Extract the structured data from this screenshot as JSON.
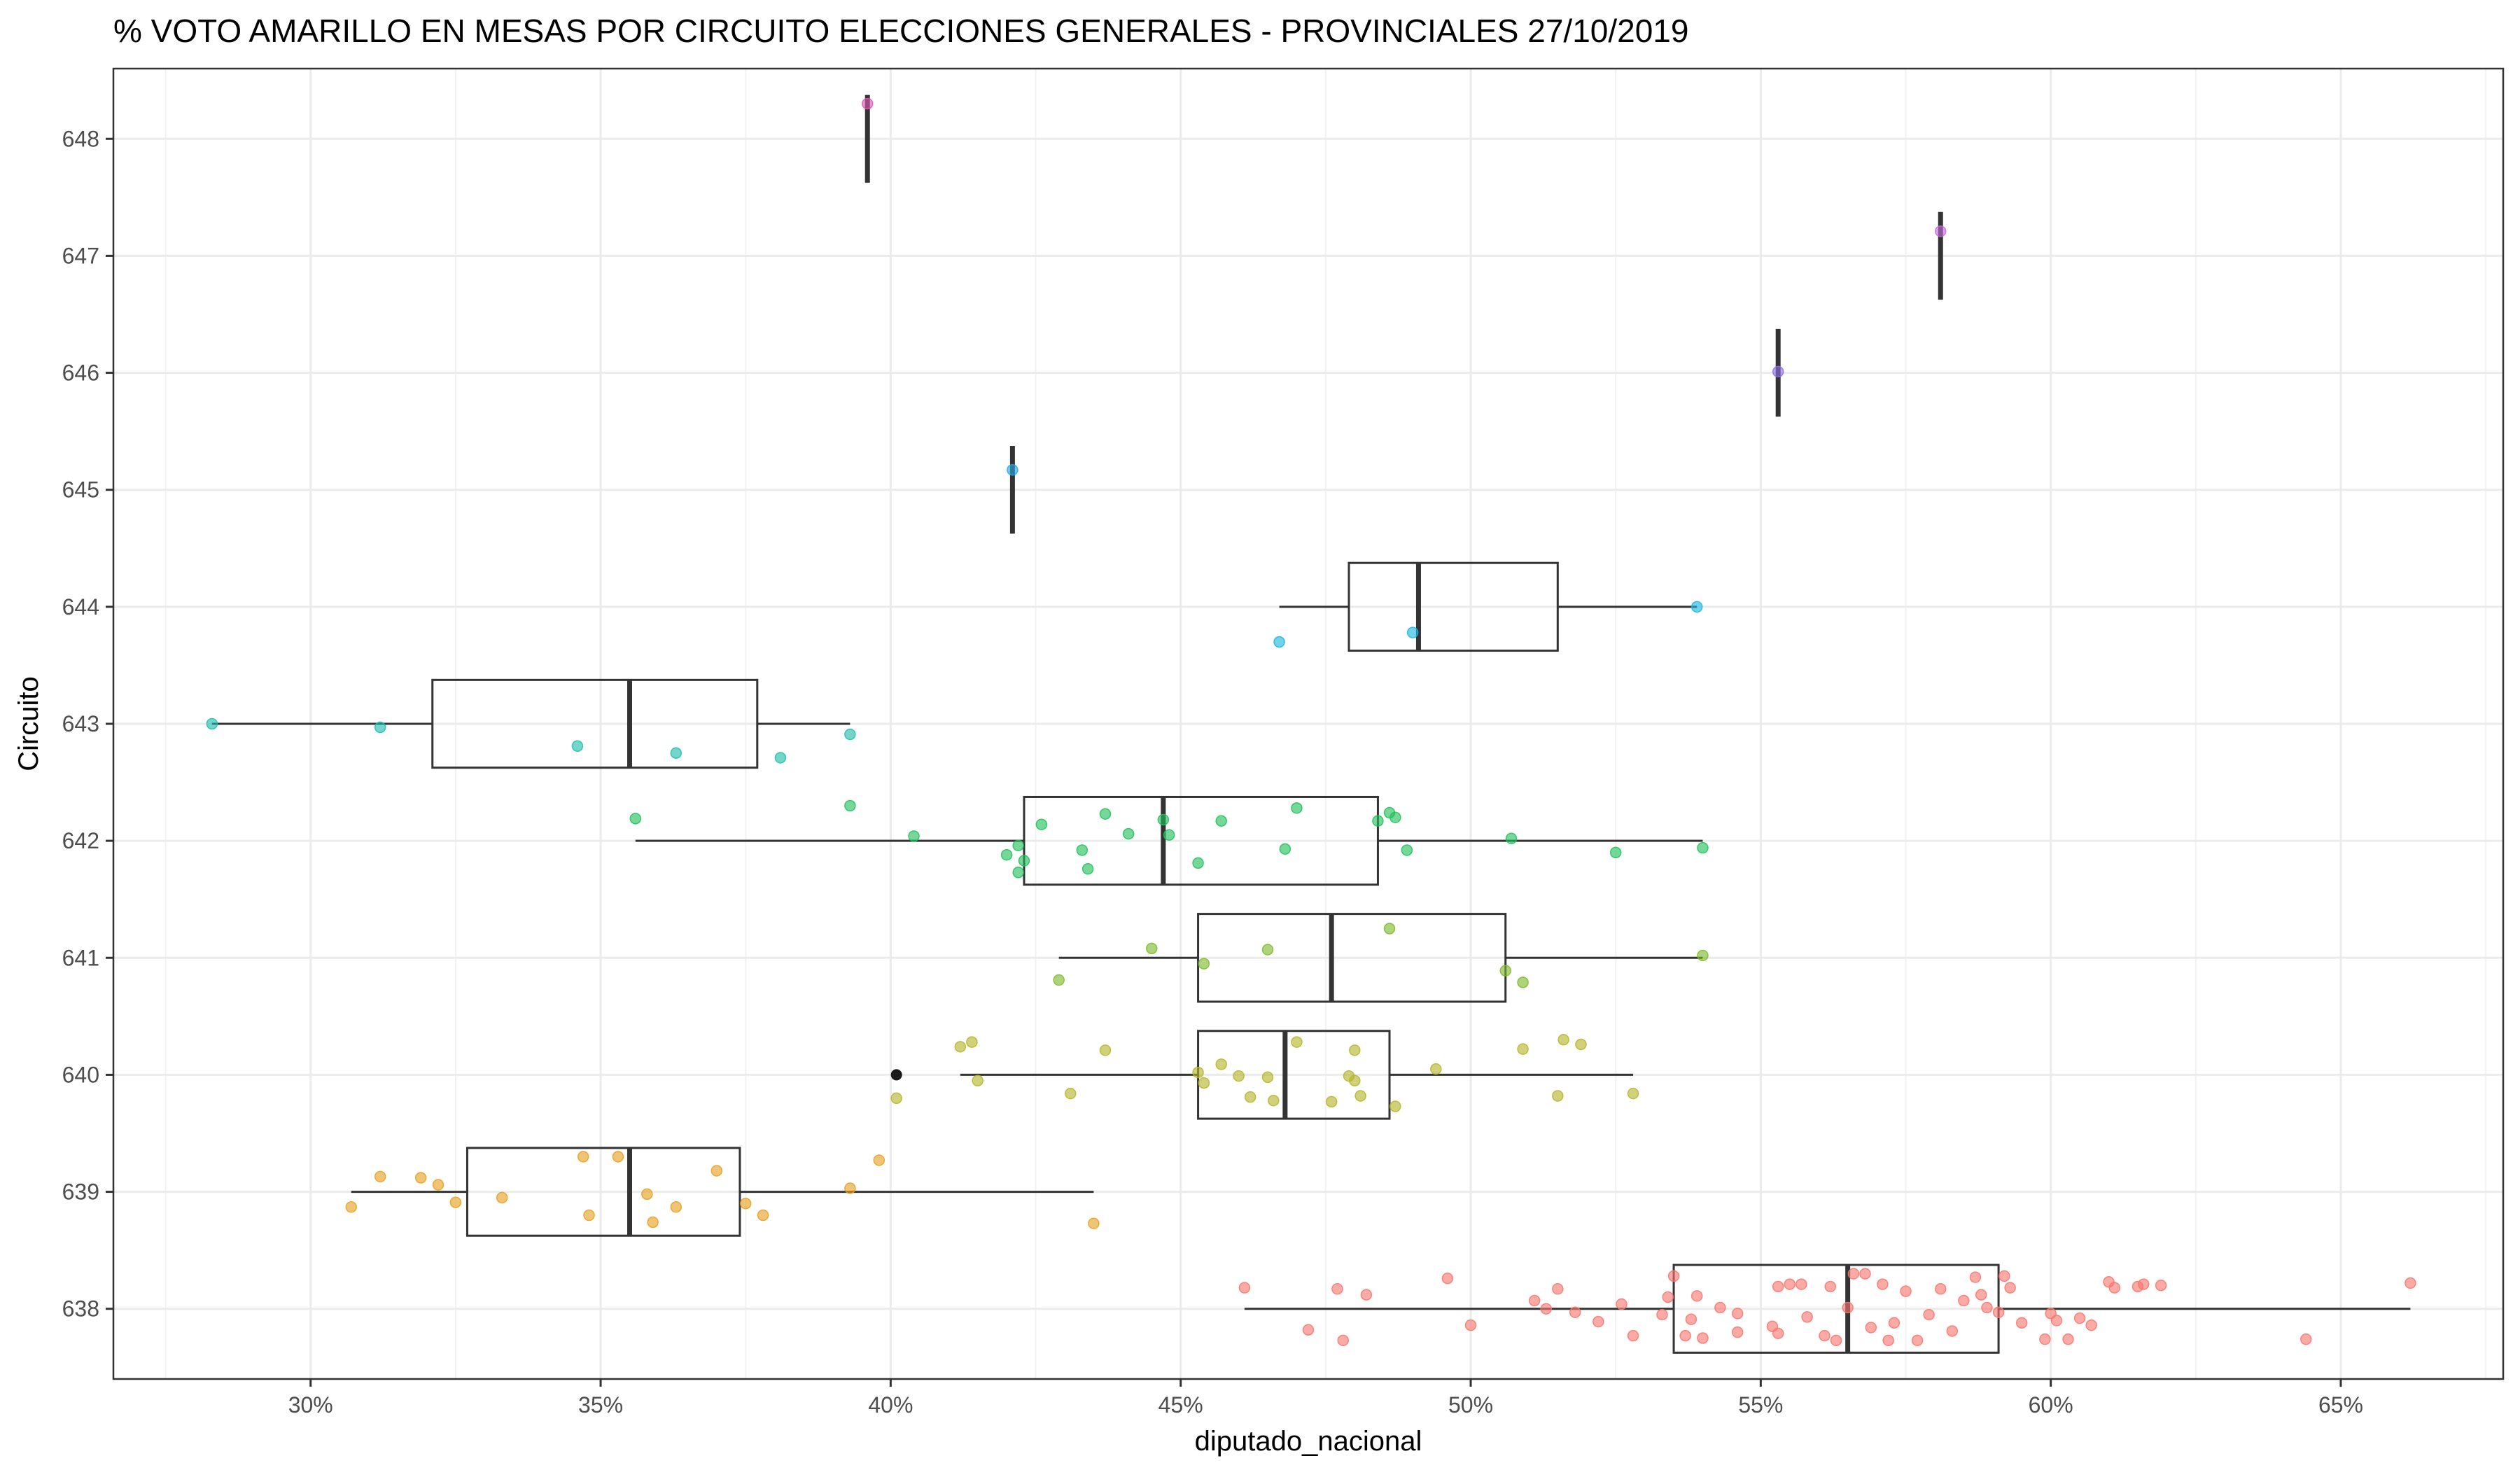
{
  "chart_data": {
    "type": "boxplot",
    "title": "% VOTO AMARILLO EN MESAS POR CIRCUITO  ELECCIONES GENERALES - PROVINCIALES 27/10/2019",
    "xlabel": "diputado_nacional",
    "ylabel": "Circuito",
    "x_unit": "%",
    "xlim": [
      26.6,
      67.8
    ],
    "x_ticks": [
      30,
      35,
      40,
      45,
      50,
      55,
      60,
      65
    ],
    "x_tick_labels": [
      "30%",
      "35%",
      "40%",
      "45%",
      "50%",
      "55%",
      "60%",
      "65%"
    ],
    "categories": [
      "638",
      "639",
      "640",
      "641",
      "642",
      "643",
      "644",
      "645",
      "646",
      "647",
      "648"
    ],
    "grid": true,
    "legend": "none",
    "colors": {
      "638": "#f8766d",
      "639": "#e69f20",
      "640": "#b5b52a",
      "641": "#7cba2a",
      "642": "#20c05a",
      "643": "#1fbdab",
      "644": "#1ab6e0",
      "645": "#27a9e6",
      "646": "#8e6fe8",
      "647": "#c66ae0",
      "648": "#e056b4"
    },
    "boxes": [
      {
        "circuit": "638",
        "whisker_low": 46.1,
        "q1": 53.5,
        "median": 56.5,
        "q3": 59.1,
        "whisker_high": 66.2
      },
      {
        "circuit": "639",
        "whisker_low": 30.7,
        "q1": 32.7,
        "median": 35.5,
        "q3": 37.4,
        "whisker_high": 43.5
      },
      {
        "circuit": "640",
        "whisker_low": 41.2,
        "q1": 45.3,
        "median": 46.8,
        "q3": 48.6,
        "whisker_high": 52.8
      },
      {
        "circuit": "641",
        "whisker_low": 42.9,
        "q1": 45.3,
        "median": 47.6,
        "q3": 50.6,
        "whisker_high": 54.0
      },
      {
        "circuit": "642",
        "whisker_low": 35.6,
        "q1": 42.3,
        "median": 44.7,
        "q3": 48.4,
        "whisker_high": 54.0
      },
      {
        "circuit": "643",
        "whisker_low": 28.3,
        "q1": 32.1,
        "median": 35.5,
        "q3": 37.7,
        "whisker_high": 39.3
      },
      {
        "circuit": "644",
        "whisker_low": 46.7,
        "q1": 47.9,
        "median": 49.1,
        "q3": 51.5,
        "whisker_high": 53.9
      },
      {
        "circuit": "645",
        "whisker_low": 42.1,
        "q1": 42.1,
        "median": 42.1,
        "q3": 42.1,
        "whisker_high": 42.1
      },
      {
        "circuit": "646",
        "whisker_low": 55.3,
        "q1": 55.3,
        "median": 55.3,
        "q3": 55.3,
        "whisker_high": 55.3
      },
      {
        "circuit": "647",
        "whisker_low": 58.1,
        "q1": 58.1,
        "median": 58.1,
        "q3": 58.1,
        "whisker_high": 58.1
      },
      {
        "circuit": "648",
        "whisker_low": 39.6,
        "q1": 39.6,
        "median": 39.6,
        "q3": 39.6,
        "whisker_high": 39.6
      }
    ],
    "outliers": [
      {
        "circuit": "640",
        "x": 40.1
      }
    ],
    "points": [
      {
        "circuit": "638",
        "x": 46.1,
        "y": 638.18
      },
      {
        "circuit": "638",
        "x": 47.2,
        "y": 637.82
      },
      {
        "circuit": "638",
        "x": 47.7,
        "y": 638.17
      },
      {
        "circuit": "638",
        "x": 47.8,
        "y": 637.73
      },
      {
        "circuit": "638",
        "x": 48.2,
        "y": 638.12
      },
      {
        "circuit": "638",
        "x": 49.6,
        "y": 638.26
      },
      {
        "circuit": "638",
        "x": 50.0,
        "y": 637.86
      },
      {
        "circuit": "638",
        "x": 51.1,
        "y": 638.07
      },
      {
        "circuit": "638",
        "x": 51.3,
        "y": 638.0
      },
      {
        "circuit": "638",
        "x": 51.5,
        "y": 638.17
      },
      {
        "circuit": "638",
        "x": 51.8,
        "y": 637.97
      },
      {
        "circuit": "638",
        "x": 52.2,
        "y": 637.89
      },
      {
        "circuit": "638",
        "x": 52.6,
        "y": 638.04
      },
      {
        "circuit": "638",
        "x": 52.8,
        "y": 637.77
      },
      {
        "circuit": "638",
        "x": 53.3,
        "y": 637.95
      },
      {
        "circuit": "638",
        "x": 53.4,
        "y": 638.1
      },
      {
        "circuit": "638",
        "x": 53.5,
        "y": 638.28
      },
      {
        "circuit": "638",
        "x": 53.7,
        "y": 637.77
      },
      {
        "circuit": "638",
        "x": 53.8,
        "y": 637.91
      },
      {
        "circuit": "638",
        "x": 53.9,
        "y": 638.11
      },
      {
        "circuit": "638",
        "x": 54.0,
        "y": 637.75
      },
      {
        "circuit": "638",
        "x": 54.3,
        "y": 638.01
      },
      {
        "circuit": "638",
        "x": 54.6,
        "y": 637.8
      },
      {
        "circuit": "638",
        "x": 54.6,
        "y": 637.96
      },
      {
        "circuit": "638",
        "x": 55.2,
        "y": 637.85
      },
      {
        "circuit": "638",
        "x": 55.3,
        "y": 638.19
      },
      {
        "circuit": "638",
        "x": 55.3,
        "y": 637.79
      },
      {
        "circuit": "638",
        "x": 55.5,
        "y": 638.21
      },
      {
        "circuit": "638",
        "x": 55.7,
        "y": 638.21
      },
      {
        "circuit": "638",
        "x": 55.8,
        "y": 637.93
      },
      {
        "circuit": "638",
        "x": 56.1,
        "y": 637.77
      },
      {
        "circuit": "638",
        "x": 56.2,
        "y": 638.19
      },
      {
        "circuit": "638",
        "x": 56.3,
        "y": 637.73
      },
      {
        "circuit": "638",
        "x": 56.5,
        "y": 638.01
      },
      {
        "circuit": "638",
        "x": 56.6,
        "y": 638.3
      },
      {
        "circuit": "638",
        "x": 56.8,
        "y": 638.3
      },
      {
        "circuit": "638",
        "x": 56.9,
        "y": 637.84
      },
      {
        "circuit": "638",
        "x": 57.1,
        "y": 638.21
      },
      {
        "circuit": "638",
        "x": 57.2,
        "y": 637.73
      },
      {
        "circuit": "638",
        "x": 57.3,
        "y": 637.88
      },
      {
        "circuit": "638",
        "x": 57.5,
        "y": 638.15
      },
      {
        "circuit": "638",
        "x": 57.7,
        "y": 637.73
      },
      {
        "circuit": "638",
        "x": 57.9,
        "y": 637.95
      },
      {
        "circuit": "638",
        "x": 58.1,
        "y": 638.17
      },
      {
        "circuit": "638",
        "x": 58.3,
        "y": 637.81
      },
      {
        "circuit": "638",
        "x": 58.5,
        "y": 638.07
      },
      {
        "circuit": "638",
        "x": 58.7,
        "y": 638.27
      },
      {
        "circuit": "638",
        "x": 58.8,
        "y": 638.12
      },
      {
        "circuit": "638",
        "x": 58.9,
        "y": 638.01
      },
      {
        "circuit": "638",
        "x": 59.1,
        "y": 637.97
      },
      {
        "circuit": "638",
        "x": 59.2,
        "y": 638.28
      },
      {
        "circuit": "638",
        "x": 59.3,
        "y": 638.18
      },
      {
        "circuit": "638",
        "x": 59.5,
        "y": 637.88
      },
      {
        "circuit": "638",
        "x": 59.9,
        "y": 637.74
      },
      {
        "circuit": "638",
        "x": 60.0,
        "y": 637.96
      },
      {
        "circuit": "638",
        "x": 60.1,
        "y": 637.9
      },
      {
        "circuit": "638",
        "x": 60.3,
        "y": 637.74
      },
      {
        "circuit": "638",
        "x": 60.5,
        "y": 637.92
      },
      {
        "circuit": "638",
        "x": 60.7,
        "y": 637.86
      },
      {
        "circuit": "638",
        "x": 61.0,
        "y": 638.23
      },
      {
        "circuit": "638",
        "x": 61.1,
        "y": 638.18
      },
      {
        "circuit": "638",
        "x": 61.5,
        "y": 638.19
      },
      {
        "circuit": "638",
        "x": 61.6,
        "y": 638.21
      },
      {
        "circuit": "638",
        "x": 61.9,
        "y": 638.2
      },
      {
        "circuit": "638",
        "x": 64.4,
        "y": 637.74
      },
      {
        "circuit": "638",
        "x": 66.2,
        "y": 638.22
      },
      {
        "circuit": "639",
        "x": 30.7,
        "y": 638.87
      },
      {
        "circuit": "639",
        "x": 31.2,
        "y": 639.13
      },
      {
        "circuit": "639",
        "x": 31.9,
        "y": 639.12
      },
      {
        "circuit": "639",
        "x": 32.2,
        "y": 639.06
      },
      {
        "circuit": "639",
        "x": 32.5,
        "y": 638.91
      },
      {
        "circuit": "639",
        "x": 33.3,
        "y": 638.95
      },
      {
        "circuit": "639",
        "x": 34.7,
        "y": 639.3
      },
      {
        "circuit": "639",
        "x": 34.8,
        "y": 638.8
      },
      {
        "circuit": "639",
        "x": 35.3,
        "y": 639.3
      },
      {
        "circuit": "639",
        "x": 35.8,
        "y": 638.98
      },
      {
        "circuit": "639",
        "x": 35.9,
        "y": 638.74
      },
      {
        "circuit": "639",
        "x": 36.3,
        "y": 638.87
      },
      {
        "circuit": "639",
        "x": 37.0,
        "y": 639.18
      },
      {
        "circuit": "639",
        "x": 37.5,
        "y": 638.9
      },
      {
        "circuit": "639",
        "x": 37.8,
        "y": 638.8
      },
      {
        "circuit": "639",
        "x": 39.3,
        "y": 639.03
      },
      {
        "circuit": "639",
        "x": 39.8,
        "y": 639.27
      },
      {
        "circuit": "639",
        "x": 43.5,
        "y": 638.73
      },
      {
        "circuit": "640",
        "x": 40.1,
        "y": 639.8
      },
      {
        "circuit": "640",
        "x": 41.2,
        "y": 640.24
      },
      {
        "circuit": "640",
        "x": 41.4,
        "y": 640.28
      },
      {
        "circuit": "640",
        "x": 41.5,
        "y": 639.95
      },
      {
        "circuit": "640",
        "x": 43.1,
        "y": 639.84
      },
      {
        "circuit": "640",
        "x": 43.7,
        "y": 640.21
      },
      {
        "circuit": "640",
        "x": 45.3,
        "y": 640.02
      },
      {
        "circuit": "640",
        "x": 45.4,
        "y": 639.93
      },
      {
        "circuit": "640",
        "x": 45.7,
        "y": 640.09
      },
      {
        "circuit": "640",
        "x": 46.0,
        "y": 639.99
      },
      {
        "circuit": "640",
        "x": 46.2,
        "y": 639.81
      },
      {
        "circuit": "640",
        "x": 46.5,
        "y": 639.98
      },
      {
        "circuit": "640",
        "x": 46.6,
        "y": 639.78
      },
      {
        "circuit": "640",
        "x": 47.0,
        "y": 640.28
      },
      {
        "circuit": "640",
        "x": 47.6,
        "y": 639.77
      },
      {
        "circuit": "640",
        "x": 47.9,
        "y": 639.99
      },
      {
        "circuit": "640",
        "x": 48.0,
        "y": 640.21
      },
      {
        "circuit": "640",
        "x": 48.1,
        "y": 639.82
      },
      {
        "circuit": "640",
        "x": 48.0,
        "y": 639.95
      },
      {
        "circuit": "640",
        "x": 48.7,
        "y": 639.73
      },
      {
        "circuit": "640",
        "x": 49.4,
        "y": 640.05
      },
      {
        "circuit": "640",
        "x": 50.9,
        "y": 640.22
      },
      {
        "circuit": "640",
        "x": 51.5,
        "y": 639.82
      },
      {
        "circuit": "640",
        "x": 51.6,
        "y": 640.3
      },
      {
        "circuit": "640",
        "x": 51.9,
        "y": 640.26
      },
      {
        "circuit": "640",
        "x": 52.8,
        "y": 639.84
      },
      {
        "circuit": "641",
        "x": 42.9,
        "y": 640.81
      },
      {
        "circuit": "641",
        "x": 44.5,
        "y": 641.08
      },
      {
        "circuit": "641",
        "x": 45.4,
        "y": 640.95
      },
      {
        "circuit": "641",
        "x": 46.5,
        "y": 641.07
      },
      {
        "circuit": "641",
        "x": 48.6,
        "y": 641.25
      },
      {
        "circuit": "641",
        "x": 50.6,
        "y": 640.89
      },
      {
        "circuit": "641",
        "x": 50.9,
        "y": 640.79
      },
      {
        "circuit": "641",
        "x": 54.0,
        "y": 641.02
      },
      {
        "circuit": "642",
        "x": 35.6,
        "y": 642.19
      },
      {
        "circuit": "642",
        "x": 39.3,
        "y": 642.3
      },
      {
        "circuit": "642",
        "x": 40.4,
        "y": 642.04
      },
      {
        "circuit": "642",
        "x": 42.0,
        "y": 641.88
      },
      {
        "circuit": "642",
        "x": 42.2,
        "y": 641.96
      },
      {
        "circuit": "642",
        "x": 42.3,
        "y": 641.83
      },
      {
        "circuit": "642",
        "x": 42.2,
        "y": 641.73
      },
      {
        "circuit": "642",
        "x": 42.6,
        "y": 642.14
      },
      {
        "circuit": "642",
        "x": 43.3,
        "y": 641.92
      },
      {
        "circuit": "642",
        "x": 43.4,
        "y": 641.76
      },
      {
        "circuit": "642",
        "x": 43.7,
        "y": 642.23
      },
      {
        "circuit": "642",
        "x": 44.1,
        "y": 642.06
      },
      {
        "circuit": "642",
        "x": 44.7,
        "y": 642.18
      },
      {
        "circuit": "642",
        "x": 44.8,
        "y": 642.05
      },
      {
        "circuit": "642",
        "x": 45.3,
        "y": 641.81
      },
      {
        "circuit": "642",
        "x": 45.7,
        "y": 642.17
      },
      {
        "circuit": "642",
        "x": 46.8,
        "y": 641.93
      },
      {
        "circuit": "642",
        "x": 47.0,
        "y": 642.28
      },
      {
        "circuit": "642",
        "x": 48.4,
        "y": 642.17
      },
      {
        "circuit": "642",
        "x": 48.6,
        "y": 642.24
      },
      {
        "circuit": "642",
        "x": 48.7,
        "y": 642.2
      },
      {
        "circuit": "642",
        "x": 48.9,
        "y": 641.92
      },
      {
        "circuit": "642",
        "x": 50.7,
        "y": 642.02
      },
      {
        "circuit": "642",
        "x": 52.5,
        "y": 641.9
      },
      {
        "circuit": "642",
        "x": 54.0,
        "y": 641.94
      },
      {
        "circuit": "643",
        "x": 28.3,
        "y": 643.0
      },
      {
        "circuit": "643",
        "x": 31.2,
        "y": 642.97
      },
      {
        "circuit": "643",
        "x": 34.6,
        "y": 642.81
      },
      {
        "circuit": "643",
        "x": 36.3,
        "y": 642.75
      },
      {
        "circuit": "643",
        "x": 38.1,
        "y": 642.71
      },
      {
        "circuit": "643",
        "x": 39.3,
        "y": 642.91
      },
      {
        "circuit": "644",
        "x": 46.7,
        "y": 643.7
      },
      {
        "circuit": "644",
        "x": 49.0,
        "y": 643.78
      },
      {
        "circuit": "644",
        "x": 53.9,
        "y": 644.0
      },
      {
        "circuit": "645",
        "x": 42.1,
        "y": 645.17
      },
      {
        "circuit": "646",
        "x": 55.3,
        "y": 646.01
      },
      {
        "circuit": "647",
        "x": 58.1,
        "y": 647.21
      },
      {
        "circuit": "648",
        "x": 39.6,
        "y": 648.3
      }
    ]
  }
}
